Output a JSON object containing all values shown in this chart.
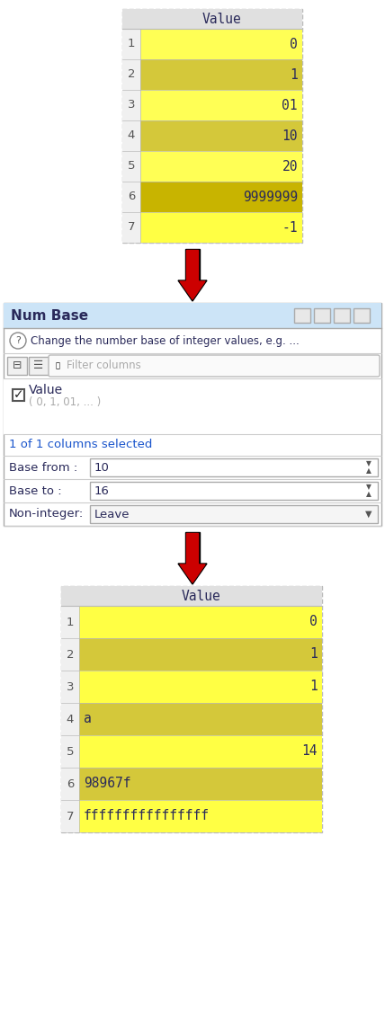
{
  "top_table": {
    "header": "Value",
    "rows": [
      {
        "idx": "1",
        "value": "0",
        "align": "right"
      },
      {
        "idx": "2",
        "value": "1",
        "align": "right"
      },
      {
        "idx": "3",
        "value": "01",
        "align": "right"
      },
      {
        "idx": "4",
        "value": "10",
        "align": "right"
      },
      {
        "idx": "5",
        "value": "20",
        "align": "right"
      },
      {
        "idx": "6",
        "value": "9999999",
        "align": "right"
      },
      {
        "idx": "7",
        "value": "-1",
        "align": "right"
      }
    ],
    "row_colors": [
      "#ffff55",
      "#d4c83a",
      "#ffff55",
      "#d4c83a",
      "#ffff55",
      "#c8b400",
      "#ffff44"
    ]
  },
  "dialog": {
    "title": "Num Base",
    "title_bg": "#cce4f7",
    "desc": "Change the number base of integer values, e.g. ...",
    "filter_placeholder": "Filter columns",
    "column_name": "Value",
    "column_preview": "( 0, 1, 01, ... )",
    "selected_text": "1 of 1 columns selected",
    "base_from_label": "Base from :",
    "base_from_value": "10",
    "base_to_label": "Base to :",
    "base_to_value": "16",
    "non_integer_label": "Non-integer:",
    "non_integer_value": "Leave"
  },
  "bottom_table": {
    "header": "Value",
    "rows": [
      {
        "idx": "1",
        "value": "0",
        "align": "right"
      },
      {
        "idx": "2",
        "value": "1",
        "align": "right"
      },
      {
        "idx": "3",
        "value": "1",
        "align": "right"
      },
      {
        "idx": "4",
        "value": "a",
        "align": "left"
      },
      {
        "idx": "5",
        "value": "14",
        "align": "right"
      },
      {
        "idx": "6",
        "value": "98967f",
        "align": "left"
      },
      {
        "idx": "7",
        "value": "ffffffffffffffff",
        "align": "left"
      }
    ],
    "row_colors": [
      "#ffff44",
      "#d4c83a",
      "#ffff44",
      "#d4c83a",
      "#ffff44",
      "#d4c83a",
      "#ffff44"
    ]
  },
  "arrow_color": "#cc0000",
  "bg_color": "#ffffff",
  "text_color": "#2a2a5a",
  "mono_font": "monospace",
  "sans_font": "DejaVu Sans"
}
